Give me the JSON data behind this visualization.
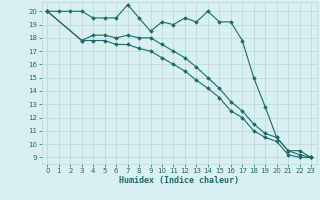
{
  "xlabel": "Humidex (Indice chaleur)",
  "ylabel": "",
  "xlim": [
    -0.5,
    23.5
  ],
  "ylim": [
    8.5,
    20.7
  ],
  "yticks": [
    9,
    10,
    11,
    12,
    13,
    14,
    15,
    16,
    17,
    18,
    19,
    20
  ],
  "xticks": [
    0,
    1,
    2,
    3,
    4,
    5,
    6,
    7,
    8,
    9,
    10,
    11,
    12,
    13,
    14,
    15,
    16,
    17,
    18,
    19,
    20,
    21,
    22,
    23
  ],
  "bg_color": "#d8f0f0",
  "grid_color": "#b8d8d8",
  "line_color": "#1a6b6b",
  "line1_x": [
    0,
    1,
    2,
    3,
    4,
    5,
    6,
    7,
    8,
    9,
    10,
    11,
    12,
    13,
    14,
    15,
    16,
    17,
    18,
    19,
    20,
    21,
    22,
    23
  ],
  "line1_y": [
    20,
    20,
    20,
    20,
    19.5,
    19.5,
    19.5,
    20.5,
    19.5,
    18.5,
    19.2,
    19.0,
    19.5,
    19.2,
    20.0,
    19.2,
    19.2,
    17.8,
    15.0,
    12.8,
    10.5,
    9.5,
    9.5,
    9.0
  ],
  "line2_x": [
    0,
    3,
    4,
    5,
    6,
    7,
    8,
    9,
    10,
    11,
    12,
    13,
    14,
    15,
    16,
    17,
    18,
    19,
    20,
    21,
    22,
    23
  ],
  "line2_y": [
    20,
    17.8,
    18.2,
    18.2,
    18.0,
    18.2,
    18.0,
    18.0,
    17.5,
    17.0,
    16.5,
    15.8,
    15.0,
    14.2,
    13.2,
    12.5,
    11.5,
    10.8,
    10.5,
    9.5,
    9.2,
    9.0
  ],
  "line3_x": [
    0,
    3,
    4,
    5,
    6,
    7,
    8,
    9,
    10,
    11,
    12,
    13,
    14,
    15,
    16,
    17,
    18,
    19,
    20,
    21,
    22,
    23
  ],
  "line3_y": [
    20,
    17.8,
    17.8,
    17.8,
    17.5,
    17.5,
    17.2,
    17.0,
    16.5,
    16.0,
    15.5,
    14.8,
    14.2,
    13.5,
    12.5,
    12.0,
    11.0,
    10.5,
    10.2,
    9.2,
    9.0,
    9.0
  ]
}
